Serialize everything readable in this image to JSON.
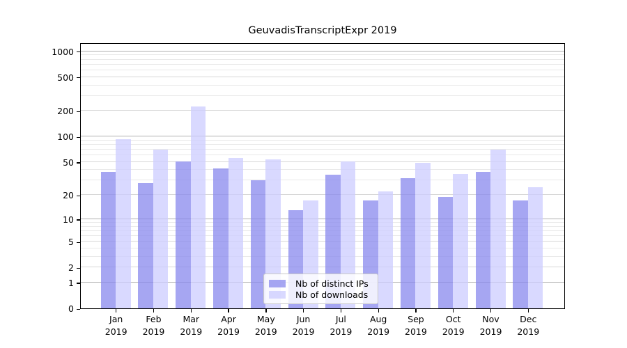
{
  "title": "GeuvadisTranscriptExpr 2019",
  "chart_data": {
    "type": "bar",
    "title": "GeuvadisTranscriptExpr 2019",
    "y_scale": "log10(1+x)",
    "ylim": [
      0,
      1200
    ],
    "grid": true,
    "categories": [
      "Jan",
      "Feb",
      "Mar",
      "Apr",
      "May",
      "Jun",
      "Jul",
      "Aug",
      "Sep",
      "Oct",
      "Nov",
      "Dec"
    ],
    "category_year": "2019",
    "series": [
      {
        "name": "Nb of distinct IPs",
        "color": "rgba(136,136,238,0.75)",
        "values": [
          38,
          28,
          51,
          42,
          30,
          13,
          35,
          17,
          32,
          19,
          38,
          17
        ]
      },
      {
        "name": "Nb of downloads",
        "color": "rgba(204,204,255,0.75)",
        "values": [
          93,
          70,
          225,
          56,
          54,
          17,
          51,
          22,
          49,
          36,
          70,
          25
        ]
      }
    ],
    "yticks": [
      0,
      1,
      2,
      5,
      10,
      20,
      50,
      100,
      200,
      500,
      1000
    ],
    "major_yticks": [
      1,
      10,
      100,
      1000
    ],
    "minor_yticks": [
      3,
      4,
      6,
      7,
      8,
      9,
      30,
      40,
      60,
      70,
      80,
      90,
      300,
      400,
      600,
      700,
      800,
      900
    ],
    "legend_position": "bottom-center-inside"
  },
  "colors": {
    "background": "#ffffff",
    "spine": "#000000",
    "grid_major": "#b0b0b0",
    "grid_mid": "#d6d6d6",
    "grid_minor": "#e9e9e9",
    "bar_distinct_ips": "rgba(136,136,238,0.75)",
    "bar_downloads": "rgba(204,204,255,0.75)"
  }
}
